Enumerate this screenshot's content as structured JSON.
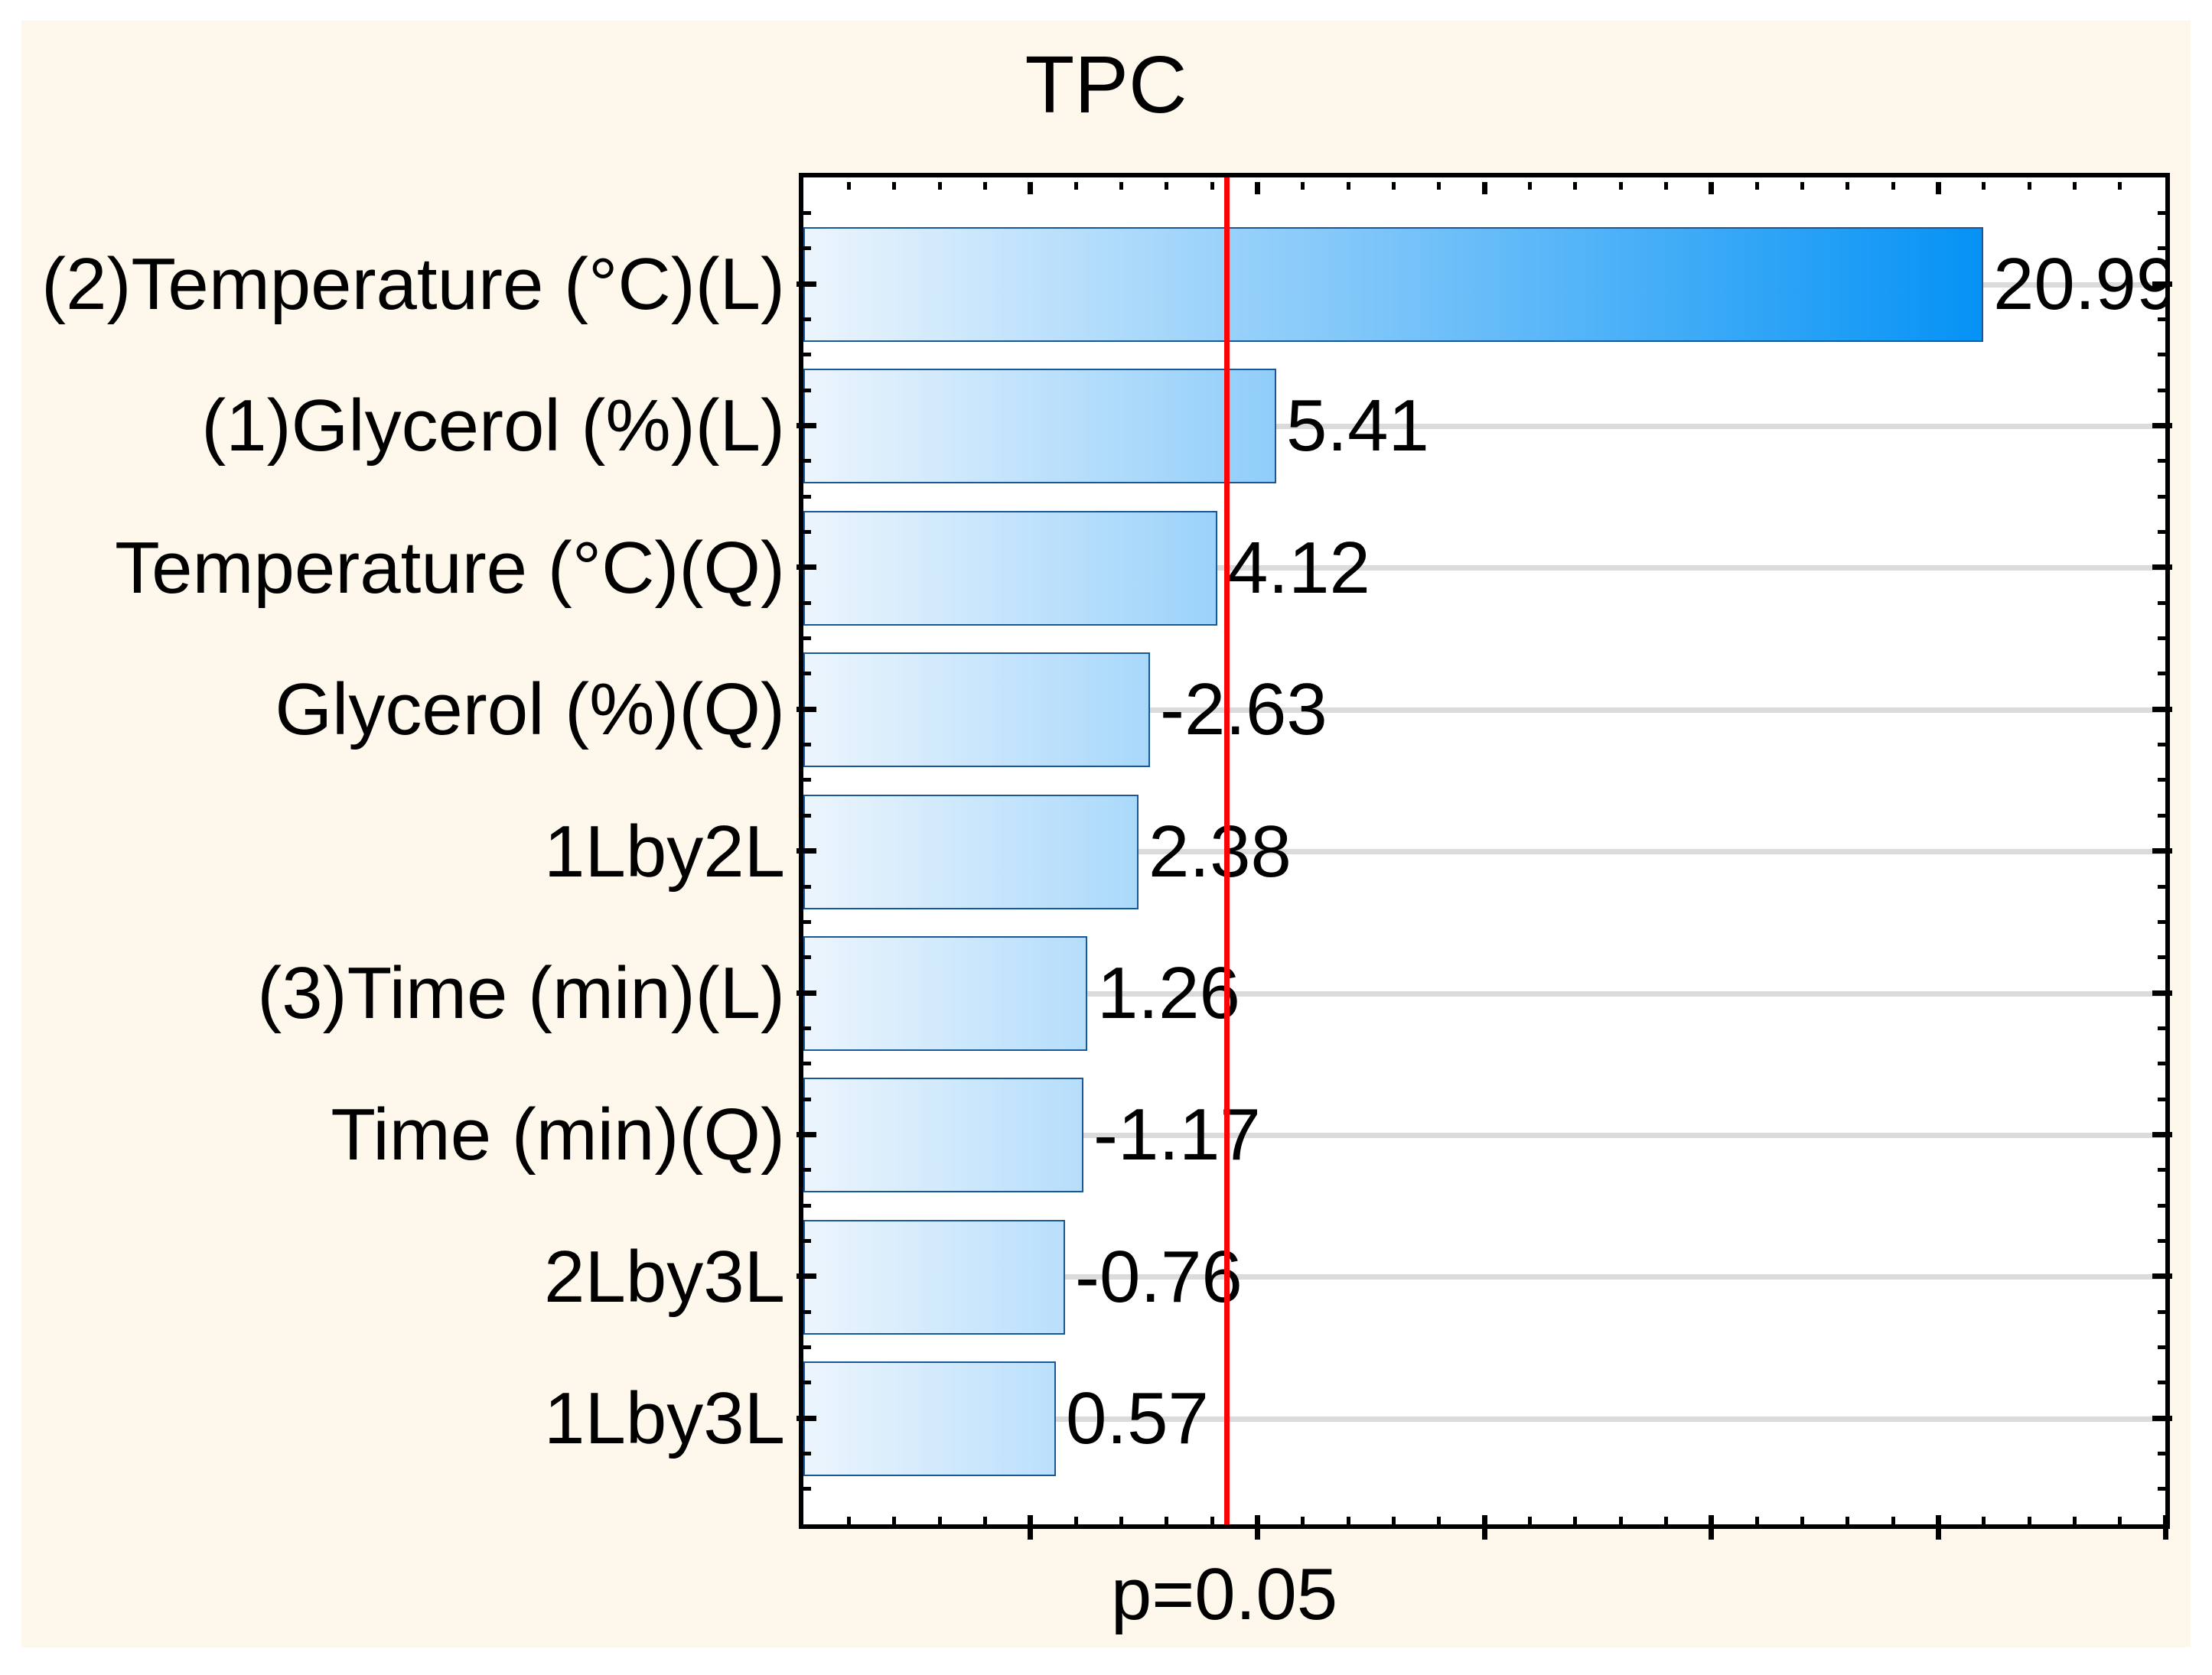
{
  "chart_data": {
    "type": "bar",
    "orientation": "horizontal",
    "title": "TPC",
    "categories": [
      "(2)Temperature (°C)(L)",
      "(1)Glycerol (%)(L)",
      "Temperature (°C)(Q)",
      "Glycerol (%)(Q)",
      "1Lby2L",
      "(3)Time (min)(L)",
      "Time (min)(Q)",
      "2Lby3L",
      "1Lby3L"
    ],
    "values": [
      20.99,
      5.41,
      4.12,
      -2.63,
      2.38,
      1.26,
      -1.17,
      -0.76,
      0.57
    ],
    "value_labels": [
      "20.99",
      "5.41",
      "4.12",
      "-2.63",
      "2.38",
      "1.26",
      "-1.17",
      "-0.76",
      "0.57"
    ],
    "bars_start_at_axis_min": true,
    "bar_length_uses_absolute_value": true,
    "xlim": [
      -5,
      25
    ],
    "x_major_tick_step": 5,
    "x_minor_tick_step": 1,
    "x_tick_labels_shown": false,
    "y_minor_ticks_per_category": 4,
    "grid": "horizontal-gray-line-per-category",
    "legend": "none",
    "significance_line": {
      "label": "p=0.05",
      "x": 4.32,
      "color": "#f90505"
    },
    "colors": {
      "outer_background": "#fdf8eb",
      "plot_background": "#ffffff",
      "bar_gradient_start": "#ecf5fd",
      "bar_gradient_end": "#0492f5",
      "bar_border": "#1a5796",
      "grid_color": "#dbdbdb",
      "axis_color": "#000000",
      "text_color": "#000000"
    }
  }
}
